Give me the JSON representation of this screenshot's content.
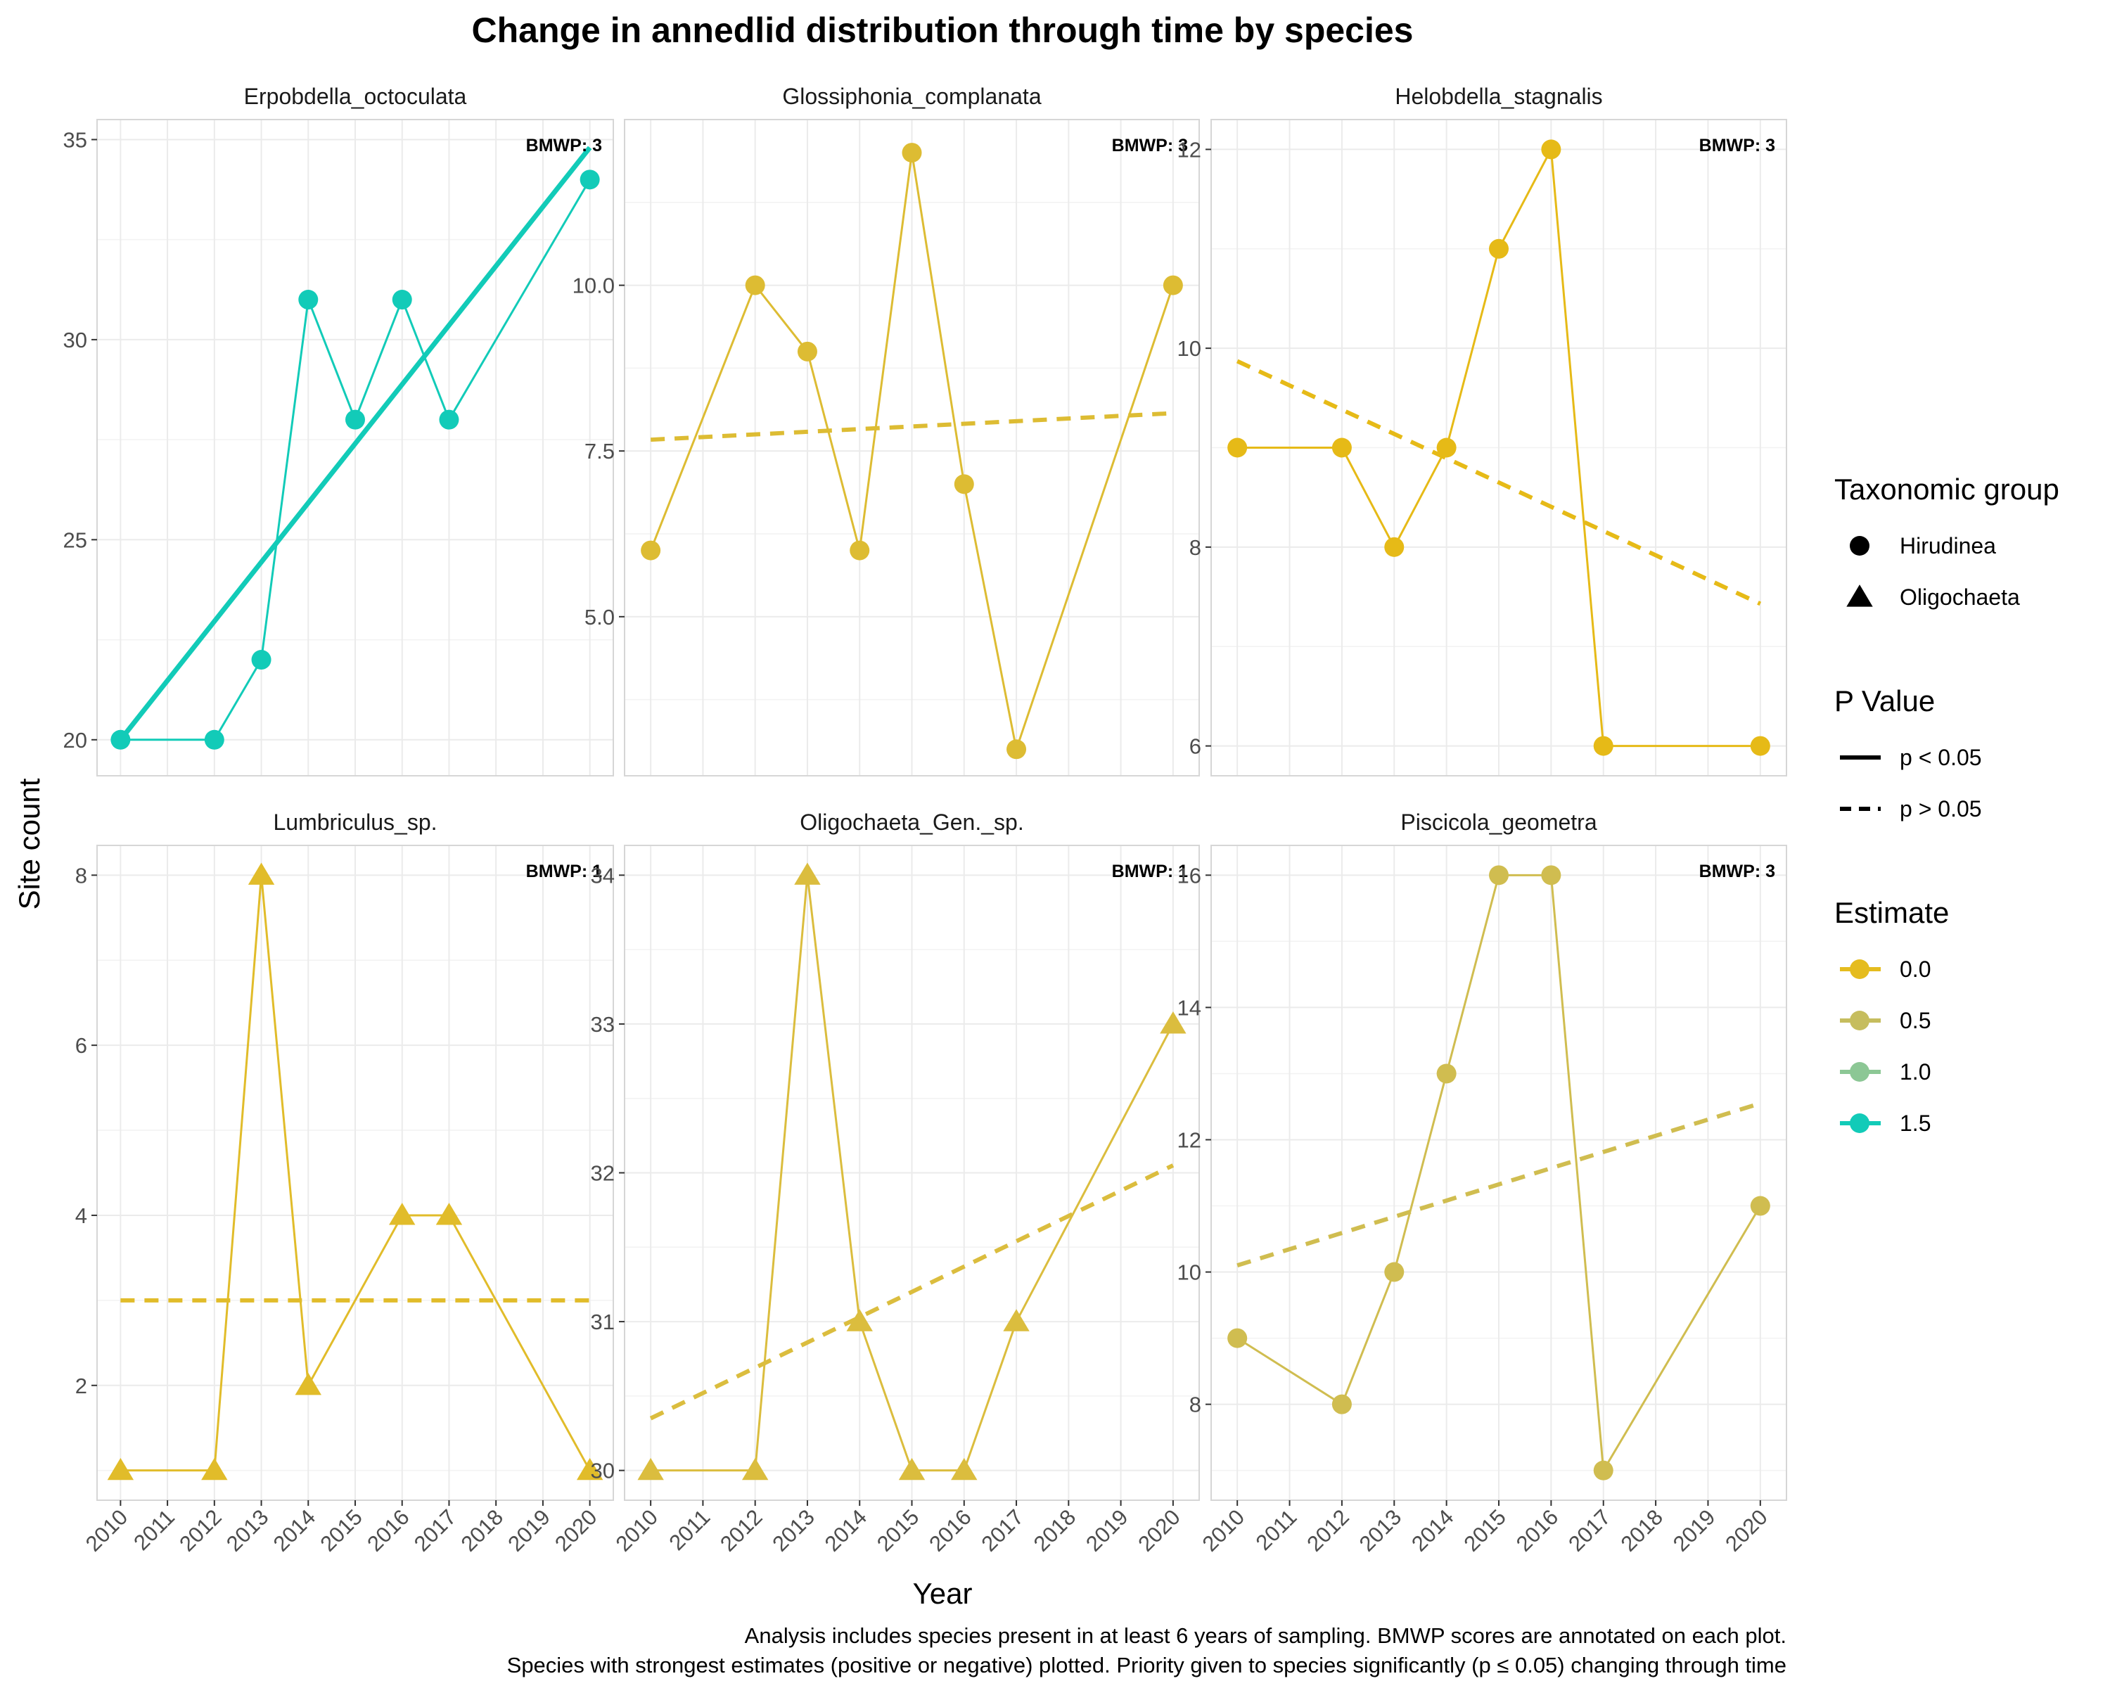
{
  "chart_data": {
    "type": "line",
    "title": "Change in annedlid distribution through time by species",
    "xlabel": "Year",
    "ylabel": "Site count",
    "xlim": [
      2009.5,
      2020.5
    ],
    "x_ticks": [
      "2010",
      "2011",
      "2012",
      "2013",
      "2014",
      "2015",
      "2016",
      "2017",
      "2018",
      "2019",
      "2020"
    ],
    "grid": true,
    "legend_position": "right",
    "caption_lines": [
      "Analysis includes species present in at least 6 years of sampling. BMWP scores are annotated on each plot.",
      "Species with strongest estimates (positive or negative) plotted. Priority given to species significantly (p ≤ 0.05) changing through time"
    ],
    "legends": {
      "shape": {
        "title": "Taxonomic group",
        "items": [
          {
            "label": "Hirudinea",
            "shape": "circle"
          },
          {
            "label": "Oligochaeta",
            "shape": "triangle"
          }
        ]
      },
      "linetype": {
        "title": "P Value",
        "items": [
          {
            "label": "p < 0.05",
            "style": "solid"
          },
          {
            "label": "p > 0.05",
            "style": "dashed"
          }
        ]
      },
      "color": {
        "title": "Estimate",
        "items": [
          {
            "label": "0.0",
            "color": "#E5BC1E"
          },
          {
            "label": "0.5",
            "color": "#C6BD5E"
          },
          {
            "label": "1.0",
            "color": "#8CC795"
          },
          {
            "label": "1.5",
            "color": "#12CBB8"
          }
        ]
      }
    },
    "panels": [
      {
        "name": "Erpobdella_octoculata",
        "bmwp": "BMWP: 3",
        "shape": "circle",
        "color": "#12CBB8",
        "ylim": [
          19.1,
          35.5
        ],
        "y_ticks": [
          20,
          25,
          30,
          35
        ],
        "y_tick_labels": [
          "20",
          "25",
          "30",
          "35"
        ],
        "show_x_axis": false,
        "x": [
          2010,
          2012,
          2013,
          2014,
          2015,
          2016,
          2017,
          2020
        ],
        "y": [
          20,
          20,
          22,
          31,
          28,
          31,
          28,
          34
        ],
        "trend": {
          "x": [
            2010,
            2020
          ],
          "y": [
            20,
            34.8
          ],
          "style": "solid"
        }
      },
      {
        "name": "Glossiphonia_complanata",
        "bmwp": "BMWP: 3",
        "shape": "circle",
        "color": "#DDBC33",
        "ylim": [
          2.6,
          12.5
        ],
        "y_ticks": [
          5,
          7.5,
          10
        ],
        "y_tick_labels": [
          "5.0",
          "7.5",
          "10.0"
        ],
        "show_x_axis": false,
        "x": [
          2010,
          2012,
          2013,
          2014,
          2015,
          2016,
          2017,
          2020
        ],
        "y": [
          6,
          10,
          9,
          6,
          12,
          7,
          3,
          10
        ],
        "trend": {
          "x": [
            2010,
            2020
          ],
          "y": [
            7.67,
            8.07
          ],
          "style": "dashed"
        }
      },
      {
        "name": "Helobdella_stagnalis",
        "bmwp": "BMWP: 3",
        "shape": "circle",
        "color": "#E6BA17",
        "ylim": [
          5.7,
          12.3
        ],
        "y_ticks": [
          6,
          8,
          10,
          12
        ],
        "y_tick_labels": [
          "6",
          "8",
          "10",
          "12"
        ],
        "show_x_axis": false,
        "x": [
          2010,
          2012,
          2013,
          2014,
          2015,
          2016,
          2017,
          2020
        ],
        "y": [
          9,
          9,
          8,
          9,
          11,
          12,
          6,
          6
        ],
        "trend": {
          "x": [
            2010,
            2020
          ],
          "y": [
            9.87,
            7.43
          ],
          "style": "dashed"
        }
      },
      {
        "name": "Lumbriculus_sp.",
        "bmwp": "BMWP: 1",
        "shape": "triangle",
        "color": "#E1BC2A",
        "ylim": [
          0.65,
          8.35
        ],
        "y_ticks": [
          2,
          4,
          6,
          8
        ],
        "y_tick_labels": [
          "2",
          "4",
          "6",
          "8"
        ],
        "show_x_axis": true,
        "x": [
          2010,
          2012,
          2013,
          2014,
          2016,
          2017,
          2020
        ],
        "y": [
          1,
          1,
          8,
          2,
          4,
          4,
          1
        ],
        "trend": {
          "x": [
            2010,
            2020
          ],
          "y": [
            3,
            3
          ],
          "style": "dashed"
        }
      },
      {
        "name": "Oligochaeta_Gen._sp.",
        "bmwp": "BMWP: 1",
        "shape": "triangle",
        "color": "#DBBD3E",
        "ylim": [
          29.8,
          34.2
        ],
        "y_ticks": [
          30,
          31,
          32,
          33,
          34
        ],
        "y_tick_labels": [
          "30",
          "31",
          "32",
          "33",
          "34"
        ],
        "show_x_axis": true,
        "x": [
          2010,
          2012,
          2013,
          2014,
          2015,
          2016,
          2017,
          2020
        ],
        "y": [
          30,
          30,
          34,
          31,
          30,
          30,
          31,
          33
        ],
        "trend": {
          "x": [
            2010,
            2020
          ],
          "y": [
            30.35,
            32.05
          ],
          "style": "dashed"
        }
      },
      {
        "name": "Piscicola_geometra",
        "bmwp": "BMWP: 3",
        "shape": "circle",
        "color": "#D0BD50",
        "ylim": [
          6.55,
          16.45
        ],
        "y_ticks": [
          8,
          10,
          12,
          14,
          16
        ],
        "y_tick_labels": [
          "8",
          "10",
          "12",
          "14",
          "16"
        ],
        "show_x_axis": true,
        "x": [
          2010,
          2012,
          2013,
          2014,
          2015,
          2016,
          2017,
          2020
        ],
        "y": [
          9,
          8,
          10,
          13,
          16,
          16,
          7,
          11
        ],
        "trend": {
          "x": [
            2010,
            2020
          ],
          "y": [
            10.1,
            12.55
          ],
          "style": "dashed"
        }
      }
    ]
  }
}
